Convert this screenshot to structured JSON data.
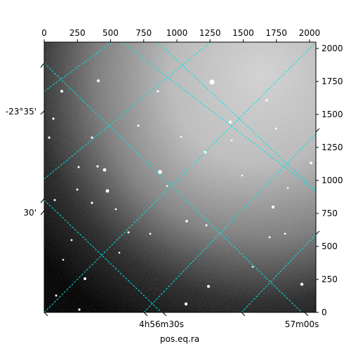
{
  "chart_data": {
    "type": "heatmap",
    "title": "",
    "xlabel": "pos.eq.ra",
    "ylabel": "",
    "pixel_axes": {
      "x_ticks": [
        0,
        250,
        500,
        750,
        1000,
        1250,
        1500,
        1750,
        2000
      ],
      "y_ticks": [
        0,
        250,
        500,
        750,
        1000,
        1250,
        1500,
        1750,
        2000
      ],
      "x_range": [
        0,
        2048
      ],
      "y_range": [
        0,
        2048
      ]
    },
    "world_axes": {
      "ra_tick_labels": [
        "4h56m30s",
        "57m00s"
      ],
      "dec_tick_labels": [
        "-23°35'",
        "30'"
      ]
    },
    "grid": {
      "visible": true,
      "color": "#00e5e5",
      "style": "dashed",
      "family_a_lines": 5,
      "family_b_lines": 5
    },
    "image": {
      "colormap": "gray",
      "background": "noisy sky, brighter toward the upper-right",
      "star_count_visible": 44
    }
  }
}
